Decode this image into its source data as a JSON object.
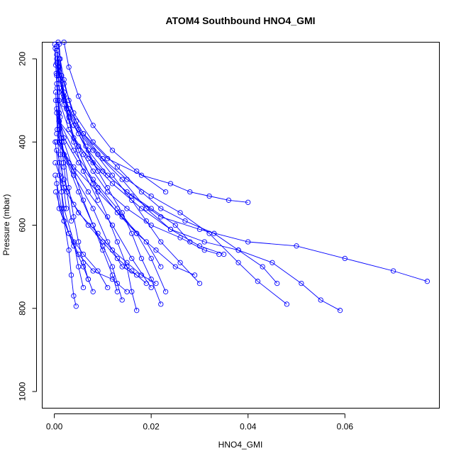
{
  "chart_data": {
    "type": "line",
    "title": "ATOM4 Southbound HNO4_GMI",
    "xlabel": "HNO4_GMI",
    "ylabel": "Pressure (mbar)",
    "xlim": [
      -0.0025,
      0.0795
    ],
    "ylim": [
      1040,
      160
    ],
    "y_reversed": true,
    "x_ticks": [
      0.0,
      0.02,
      0.04,
      0.06
    ],
    "x_tick_labels": [
      "0.00",
      "0.02",
      "0.04",
      "0.06"
    ],
    "y_ticks": [
      200,
      400,
      600,
      800,
      1000
    ],
    "y_tick_labels": [
      "200",
      "400",
      "600",
      "800",
      "1000"
    ],
    "grid": false,
    "legend": "none",
    "series_color": "#0000ff",
    "series": [
      {
        "x": [
          0.0005,
          0.001,
          0.002,
          0.003,
          0.004,
          0.006,
          0.008,
          0.011,
          0.015,
          0.02,
          0.026,
          0.031,
          0.034
        ],
        "y": [
          180,
          230,
          290,
          340,
          390,
          430,
          470,
          520,
          560,
          600,
          630,
          660,
          670
        ]
      },
      {
        "x": [
          0.001,
          0.002,
          0.004,
          0.007,
          0.011,
          0.016,
          0.022,
          0.03,
          0.04,
          0.05,
          0.06,
          0.07,
          0.077
        ],
        "y": [
          200,
          280,
          360,
          420,
          480,
          530,
          580,
          610,
          640,
          650,
          680,
          710,
          735
        ]
      },
      {
        "x": [
          0.0005,
          0.001,
          0.003,
          0.006,
          0.011,
          0.018,
          0.024,
          0.028,
          0.032,
          0.036,
          0.04
        ],
        "y": [
          170,
          240,
          320,
          380,
          440,
          480,
          500,
          520,
          530,
          540,
          545
        ]
      },
      {
        "x": [
          0.001,
          0.002,
          0.005,
          0.009,
          0.014,
          0.019,
          0.024,
          0.031,
          0.038,
          0.045,
          0.051,
          0.055,
          0.059
        ],
        "y": [
          220,
          300,
          370,
          430,
          490,
          560,
          610,
          640,
          660,
          690,
          740,
          780,
          805
        ]
      },
      {
        "x": [
          0.0005,
          0.002,
          0.004,
          0.008,
          0.013,
          0.018,
          0.022,
          0.027,
          0.033,
          0.038,
          0.043,
          0.046
        ],
        "y": [
          190,
          260,
          330,
          400,
          460,
          520,
          560,
          590,
          620,
          660,
          700,
          740
        ]
      },
      {
        "x": [
          0.001,
          0.003,
          0.006,
          0.01,
          0.015,
          0.02,
          0.026,
          0.032,
          0.038,
          0.042,
          0.048
        ],
        "y": [
          250,
          320,
          380,
          440,
          490,
          530,
          570,
          620,
          690,
          735,
          790
        ]
      },
      {
        "x": [
          0.0005,
          0.002,
          0.004,
          0.008,
          0.012,
          0.016,
          0.019,
          0.022,
          0.026,
          0.03
        ],
        "y": [
          210,
          290,
          360,
          420,
          480,
          540,
          590,
          640,
          690,
          740
        ]
      },
      {
        "x": [
          0.001,
          0.002,
          0.005,
          0.008,
          0.011,
          0.014,
          0.016,
          0.018,
          0.02,
          0.022
        ],
        "y": [
          230,
          310,
          380,
          450,
          510,
          570,
          620,
          680,
          730,
          790
        ]
      },
      {
        "x": [
          0.0005,
          0.001,
          0.003,
          0.005,
          0.008,
          0.011,
          0.013,
          0.015,
          0.016,
          0.017
        ],
        "y": [
          200,
          270,
          350,
          420,
          500,
          580,
          640,
          700,
          760,
          805
        ]
      },
      {
        "x": [
          0.0005,
          0.001,
          0.002,
          0.004,
          0.006,
          0.008,
          0.01,
          0.012,
          0.013,
          0.014
        ],
        "y": [
          240,
          330,
          400,
          470,
          540,
          600,
          650,
          700,
          740,
          780
        ]
      },
      {
        "x": [
          0.0005,
          0.001,
          0.002,
          0.003,
          0.004,
          0.005,
          0.006,
          0.007,
          0.008
        ],
        "y": [
          260,
          350,
          430,
          510,
          580,
          640,
          690,
          730,
          760
        ]
      },
      {
        "x": [
          0.0003,
          0.0006,
          0.001,
          0.0015,
          0.002,
          0.003,
          0.0035,
          0.004,
          0.0045
        ],
        "y": [
          280,
          370,
          450,
          520,
          590,
          660,
          720,
          770,
          795
        ]
      },
      {
        "x": [
          0.001,
          0.003,
          0.007,
          0.012,
          0.018,
          0.024,
          0.03,
          0.035
        ],
        "y": [
          300,
          370,
          440,
          500,
          560,
          610,
          650,
          670
        ]
      },
      {
        "x": [
          0.0005,
          0.002,
          0.005,
          0.009,
          0.013,
          0.017,
          0.021,
          0.025,
          0.029
        ],
        "y": [
          320,
          390,
          450,
          510,
          570,
          620,
          660,
          700,
          720
        ]
      },
      {
        "x": [
          0.001,
          0.004,
          0.008,
          0.013,
          0.017,
          0.02,
          0.023
        ],
        "y": [
          350,
          420,
          490,
          560,
          620,
          680,
          760
        ]
      },
      {
        "x": [
          0.0005,
          0.003,
          0.007,
          0.012,
          0.016,
          0.02
        ],
        "y": [
          380,
          450,
          520,
          600,
          680,
          750
        ]
      },
      {
        "x": [
          0.0003,
          0.001,
          0.004,
          0.008,
          0.011,
          0.014,
          0.017
        ],
        "y": [
          300,
          400,
          480,
          560,
          640,
          700,
          720
        ]
      },
      {
        "x": [
          0.0005,
          0.002,
          0.005,
          0.008,
          0.01,
          0.012,
          0.013
        ],
        "y": [
          330,
          430,
          520,
          600,
          660,
          720,
          760
        ]
      },
      {
        "x": [
          0.0002,
          0.001,
          0.002,
          0.004,
          0.005,
          0.006
        ],
        "y": [
          400,
          480,
          560,
          640,
          700,
          750
        ]
      },
      {
        "x": [
          0.0005,
          0.002,
          0.004,
          0.007,
          0.01,
          0.013,
          0.016,
          0.019
        ],
        "y": [
          420,
          490,
          550,
          600,
          640,
          680,
          710,
          740
        ]
      },
      {
        "x": [
          0.001,
          0.005,
          0.01,
          0.015,
          0.02,
          0.025,
          0.028
        ],
        "y": [
          350,
          410,
          470,
          520,
          560,
          600,
          640
        ]
      },
      {
        "x": [
          0.0005,
          0.004,
          0.009,
          0.014,
          0.019,
          0.022
        ],
        "y": [
          400,
          460,
          520,
          580,
          640,
          700
        ]
      },
      {
        "x": [
          0.0002,
          0.002,
          0.005,
          0.009,
          0.012,
          0.015,
          0.018,
          0.021
        ],
        "y": [
          450,
          510,
          570,
          620,
          660,
          690,
          720,
          740
        ]
      },
      {
        "x": [
          0.0005,
          0.001,
          0.003,
          0.006,
          0.009,
          0.011
        ],
        "y": [
          500,
          560,
          620,
          670,
          710,
          750
        ]
      },
      {
        "x": [
          0.0003,
          0.002,
          0.004,
          0.006,
          0.007
        ],
        "y": [
          520,
          590,
          650,
          700,
          730
        ]
      },
      {
        "x": [
          0.0002,
          0.0015,
          0.003,
          0.005,
          0.008,
          0.012,
          0.015
        ],
        "y": [
          480,
          560,
          620,
          670,
          710,
          730,
          760
        ]
      },
      {
        "x": [
          0.0005,
          0.0008,
          0.001,
          0.0012,
          0.0015,
          0.002
        ],
        "y": [
          170,
          220,
          280,
          340,
          400,
          460
        ]
      },
      {
        "x": [
          0.0002,
          0.0004,
          0.0007,
          0.001,
          0.0013,
          0.0018,
          0.0025
        ],
        "y": [
          175,
          235,
          300,
          370,
          430,
          500,
          560
        ]
      },
      {
        "x": [
          0.001,
          0.0015,
          0.0025,
          0.004,
          0.006,
          0.009
        ],
        "y": [
          165,
          240,
          320,
          400,
          470,
          540
        ]
      },
      {
        "x": [
          0.0001,
          0.0003,
          0.0006,
          0.001,
          0.0014,
          0.0019,
          0.0026,
          0.0035
        ],
        "y": [
          165,
          215,
          270,
          330,
          390,
          450,
          520,
          590
        ]
      },
      {
        "x": [
          0.002,
          0.003,
          0.005,
          0.008,
          0.012,
          0.017,
          0.023
        ],
        "y": [
          160,
          220,
          290,
          360,
          420,
          470,
          520
        ]
      },
      {
        "x": [
          0.0008,
          0.0012,
          0.002,
          0.003,
          0.0045,
          0.0065,
          0.009
        ],
        "y": [
          160,
          200,
          250,
          300,
          350,
          410,
          470
        ]
      }
    ]
  }
}
